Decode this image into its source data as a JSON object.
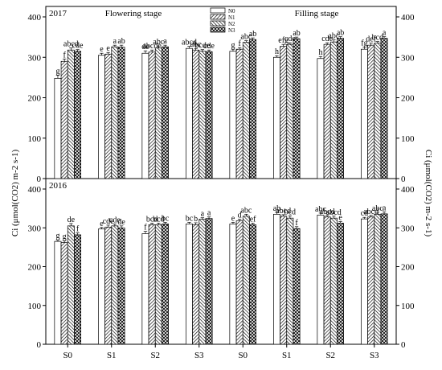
{
  "chart_data": [
    {
      "type": "bar",
      "year_label": "2017",
      "stage_labels": [
        "Flowering stage",
        "Filling stage"
      ],
      "categories": [
        "S0",
        "S1",
        "S2",
        "S3",
        "S0",
        "S1",
        "S2",
        "S3"
      ],
      "series": [
        {
          "name": "N0",
          "values": [
            248,
            305,
            310,
            322,
            315,
            300,
            297,
            320
          ],
          "errors": [
            8,
            5,
            6,
            5,
            5,
            4,
            5,
            5
          ],
          "labels": [
            "g",
            "e",
            "de",
            "abcd",
            "g",
            "h",
            "h",
            "fg"
          ]
        },
        {
          "name": "N1",
          "values": [
            290,
            308,
            313,
            318,
            320,
            327,
            332,
            330
          ],
          "errors": [
            6,
            4,
            5,
            4,
            4,
            5,
            4,
            5
          ],
          "labels": [
            "f",
            "e",
            "abcde",
            "abc",
            "f",
            "efg",
            "cde",
            "def"
          ]
        },
        {
          "name": "N2",
          "values": [
            318,
            326,
            323,
            315,
            337,
            332,
            338,
            335
          ],
          "errors": [
            5,
            4,
            5,
            4,
            4,
            4,
            5,
            4
          ],
          "labels": [
            "abcd",
            "a",
            "abc",
            "bcde",
            "abc",
            "cde",
            "abc",
            "bcd"
          ]
        },
        {
          "name": "N3",
          "values": [
            315,
            325,
            326,
            314,
            344,
            346,
            347,
            347
          ],
          "errors": [
            4,
            5,
            4,
            4,
            4,
            4,
            4,
            4
          ],
          "labels": [
            "cde",
            "ab",
            "a",
            "cde",
            "ab",
            "ab",
            "ab",
            "a"
          ]
        }
      ],
      "ylim": [
        0,
        400
      ],
      "yticks": [
        0,
        100,
        200,
        300,
        400
      ]
    },
    {
      "type": "bar",
      "year_label": "2016",
      "categories": [
        "S0",
        "S1",
        "S2",
        "S3",
        "S0",
        "S1",
        "S2",
        "S3"
      ],
      "series": [
        {
          "name": "N0",
          "values": [
            265,
            297,
            285,
            310,
            310,
            335,
            333,
            323
          ],
          "errors": [
            4,
            4,
            6,
            4,
            4,
            5,
            5,
            4
          ],
          "labels": [
            "g",
            "e",
            "f",
            "bc",
            "e",
            "ab",
            "abc",
            "cd"
          ]
        },
        {
          "name": "N1",
          "values": [
            262,
            302,
            308,
            308,
            318,
            330,
            328,
            328
          ],
          "errors": [
            5,
            5,
            4,
            5,
            4,
            4,
            4,
            4
          ],
          "labels": [
            "g",
            "cde",
            "bcd",
            "b",
            "d",
            "abcd",
            "abcd",
            "abcd"
          ]
        },
        {
          "name": "N2",
          "values": [
            305,
            305,
            308,
            322,
            330,
            325,
            325,
            335
          ],
          "errors": [
            6,
            5,
            4,
            4,
            5,
            6,
            5,
            5
          ],
          "labels": [
            "de",
            "cde",
            "bcd",
            "a",
            "abc",
            "bcd",
            "abcd",
            "abc"
          ]
        },
        {
          "name": "N3",
          "values": [
            282,
            300,
            310,
            324,
            308,
            298,
            312,
            336
          ],
          "errors": [
            5,
            5,
            4,
            4,
            4,
            5,
            4,
            5
          ],
          "labels": [
            "f",
            "de",
            "bc",
            "a",
            "ef",
            "f",
            "e",
            "a"
          ]
        }
      ],
      "ylim": [
        0,
        400
      ],
      "yticks": [
        0,
        100,
        200,
        300,
        400
      ]
    }
  ],
  "legend": [
    "N0",
    "N1",
    "N2",
    "N3"
  ],
  "ylabel_left": "Ci (μmol(CO2) m-2 s-1)",
  "ylabel_right": "Ci (μmol(CO2) m-2 s-1)"
}
